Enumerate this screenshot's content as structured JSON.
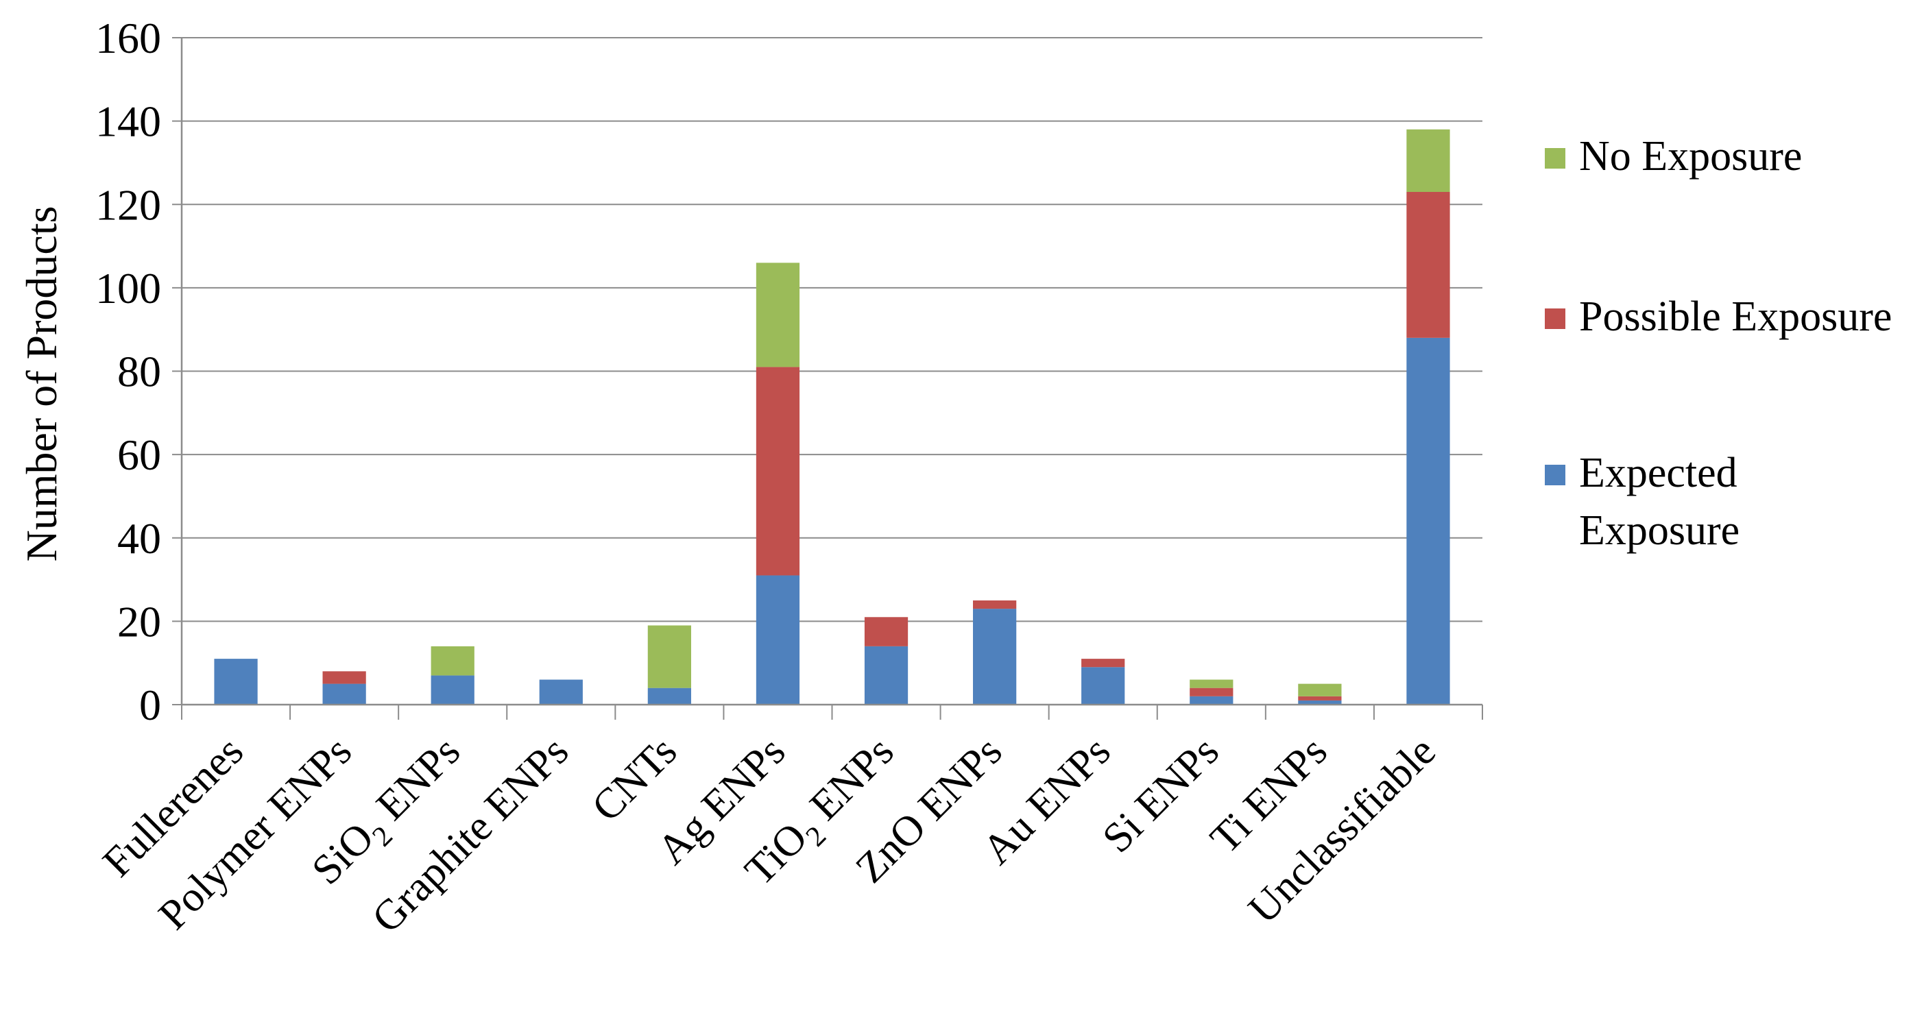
{
  "chart_data": {
    "type": "bar",
    "stacked": true,
    "ylabel": "Number of Products",
    "xlabel": "",
    "ylim": [
      0,
      160
    ],
    "yticks": [
      0,
      20,
      40,
      60,
      80,
      100,
      120,
      140,
      160
    ],
    "grid": true,
    "legend_position": "right",
    "categories": [
      {
        "main": "Fullerenes"
      },
      {
        "main": "Polymer ENPs"
      },
      {
        "main": "SiO",
        "sub": "2",
        "rest": " ENPs"
      },
      {
        "main": "Graphite ENPs"
      },
      {
        "main": "CNTs"
      },
      {
        "main": "Ag ENPs"
      },
      {
        "main": "TiO",
        "sub": "2",
        "rest": " ENPs"
      },
      {
        "main": "ZnO ENPs"
      },
      {
        "main": "Au ENPs"
      },
      {
        "main": "Si ENPs"
      },
      {
        "main": "Ti ENPs"
      },
      {
        "main": "Unclassifiable"
      }
    ],
    "series": [
      {
        "name": "Expected Exposure",
        "legend_lines": [
          "Expected",
          "Exposure"
        ],
        "color": "#4f81bd",
        "values": [
          11,
          5,
          7,
          6,
          4,
          31,
          14,
          23,
          9,
          2,
          1,
          88
        ]
      },
      {
        "name": "Possible Exposure",
        "legend_lines": [
          "Possible Exposure"
        ],
        "color": "#c0504d",
        "values": [
          0,
          3,
          0,
          0,
          0,
          50,
          7,
          2,
          2,
          2,
          1,
          35
        ]
      },
      {
        "name": "No Exposure",
        "legend_lines": [
          "No Exposure"
        ],
        "color": "#9bbb59",
        "values": [
          0,
          0,
          7,
          0,
          15,
          25,
          0,
          0,
          0,
          2,
          3,
          15
        ]
      }
    ]
  }
}
